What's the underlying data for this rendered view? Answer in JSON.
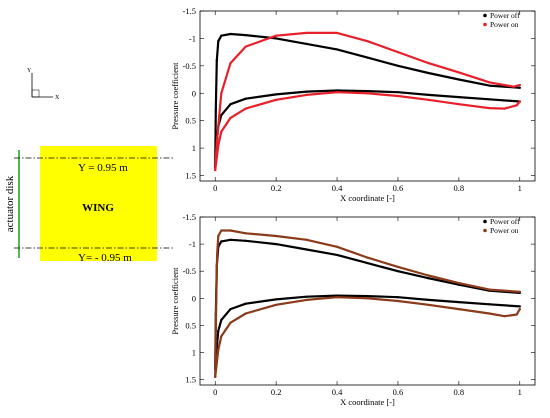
{
  "diagram": {
    "axis_y_label": "Y",
    "axis_x_label": "X",
    "actuator_label": "actuator disk",
    "wing_label": "WING",
    "line_top_label": "Y = 0.95 m",
    "line_bottom_label": "Y= - 0.95 m",
    "wing_color": "#ffff00",
    "actuator_color": "#22aa22"
  },
  "chart_data": [
    {
      "type": "line",
      "xlabel": "X coordinate [-]",
      "ylabel": "Pressure coefficient",
      "xlim": [
        -0.05,
        1.05
      ],
      "ylim": [
        -1.5,
        1.6
      ],
      "y_inverted": true,
      "xticks": [
        "0",
        "0.2",
        "0.4",
        "0.6",
        "0.8",
        "1"
      ],
      "yticks": [
        "-1.5",
        "-1",
        "-0.5",
        "0",
        "0.5",
        "1",
        "1.5"
      ],
      "legend_position": "top-right",
      "series": [
        {
          "name": "Power off",
          "color": "#000000",
          "upper": {
            "x": [
              0,
              0.002,
              0.005,
              0.01,
              0.02,
              0.05,
              0.1,
              0.2,
              0.3,
              0.4,
              0.5,
              0.6,
              0.7,
              0.8,
              0.9,
              1.0
            ],
            "y": [
              1.35,
              0.3,
              -0.6,
              -0.95,
              -1.05,
              -1.08,
              -1.06,
              -1.0,
              -0.9,
              -0.8,
              -0.65,
              -0.5,
              -0.37,
              -0.25,
              -0.14,
              -0.1
            ]
          },
          "lower": {
            "x": [
              0,
              0.005,
              0.01,
              0.02,
              0.05,
              0.1,
              0.2,
              0.3,
              0.4,
              0.5,
              0.6,
              0.7,
              0.8,
              0.9,
              1.0
            ],
            "y": [
              1.35,
              0.9,
              0.6,
              0.4,
              0.2,
              0.1,
              0.02,
              -0.03,
              -0.05,
              -0.04,
              -0.02,
              0.03,
              0.07,
              0.11,
              0.15
            ]
          }
        },
        {
          "name": "Power on",
          "color": "#e8202a",
          "upper": {
            "x": [
              0,
              0.005,
              0.02,
              0.05,
              0.1,
              0.2,
              0.3,
              0.4,
              0.5,
              0.6,
              0.7,
              0.8,
              0.9,
              0.98,
              1.0
            ],
            "y": [
              1.4,
              0.9,
              0.0,
              -0.55,
              -0.85,
              -1.05,
              -1.1,
              -1.1,
              -0.95,
              -0.75,
              -0.55,
              -0.38,
              -0.2,
              -0.12,
              -0.15
            ]
          },
          "lower": {
            "x": [
              0,
              0.01,
              0.02,
              0.05,
              0.1,
              0.2,
              0.3,
              0.4,
              0.5,
              0.6,
              0.7,
              0.8,
              0.9,
              0.95,
              0.99,
              1.0
            ],
            "y": [
              1.4,
              0.95,
              0.7,
              0.45,
              0.28,
              0.12,
              0.03,
              -0.02,
              0.0,
              0.05,
              0.12,
              0.2,
              0.27,
              0.28,
              0.22,
              0.15
            ]
          }
        }
      ]
    },
    {
      "type": "line",
      "xlabel": "X coordinate [-]",
      "ylabel": "Pressure coefficient",
      "xlim": [
        -0.05,
        1.05
      ],
      "ylim": [
        -1.5,
        1.6
      ],
      "y_inverted": true,
      "xticks": [
        "0",
        "0.2",
        "0.4",
        "0.6",
        "0.8",
        "1"
      ],
      "yticks": [
        "-1.5",
        "-1",
        "-0.5",
        "0",
        "0.5",
        "1",
        "1.5"
      ],
      "legend_position": "top-right",
      "series": [
        {
          "name": "Power off",
          "color": "#000000",
          "upper": {
            "x": [
              0,
              0.002,
              0.005,
              0.01,
              0.02,
              0.05,
              0.1,
              0.2,
              0.3,
              0.4,
              0.5,
              0.6,
              0.7,
              0.8,
              0.9,
              1.0
            ],
            "y": [
              1.3,
              0.3,
              -0.6,
              -0.95,
              -1.05,
              -1.08,
              -1.06,
              -1.0,
              -0.9,
              -0.8,
              -0.65,
              -0.5,
              -0.37,
              -0.25,
              -0.14,
              -0.1
            ]
          },
          "lower": {
            "x": [
              0,
              0.005,
              0.01,
              0.02,
              0.05,
              0.1,
              0.2,
              0.3,
              0.4,
              0.5,
              0.6,
              0.7,
              0.8,
              0.9,
              1.0
            ],
            "y": [
              1.3,
              0.9,
              0.6,
              0.4,
              0.2,
              0.1,
              0.02,
              -0.03,
              -0.05,
              -0.04,
              -0.02,
              0.03,
              0.07,
              0.11,
              0.15
            ]
          }
        },
        {
          "name": "Power on",
          "color": "#8b3a1a",
          "upper": {
            "x": [
              0,
              0.003,
              0.006,
              0.01,
              0.02,
              0.05,
              0.1,
              0.2,
              0.3,
              0.4,
              0.5,
              0.6,
              0.7,
              0.8,
              0.9,
              1.0
            ],
            "y": [
              1.45,
              0.2,
              -0.8,
              -1.15,
              -1.25,
              -1.25,
              -1.2,
              -1.15,
              -1.08,
              -0.95,
              -0.75,
              -0.58,
              -0.42,
              -0.28,
              -0.16,
              -0.12
            ]
          },
          "lower": {
            "x": [
              0,
              0.01,
              0.02,
              0.05,
              0.1,
              0.2,
              0.3,
              0.4,
              0.5,
              0.6,
              0.7,
              0.8,
              0.9,
              0.95,
              0.99,
              1.0
            ],
            "y": [
              1.45,
              0.95,
              0.7,
              0.45,
              0.28,
              0.12,
              0.03,
              -0.02,
              0.0,
              0.05,
              0.12,
              0.2,
              0.28,
              0.33,
              0.3,
              0.2
            ]
          }
        }
      ]
    }
  ]
}
